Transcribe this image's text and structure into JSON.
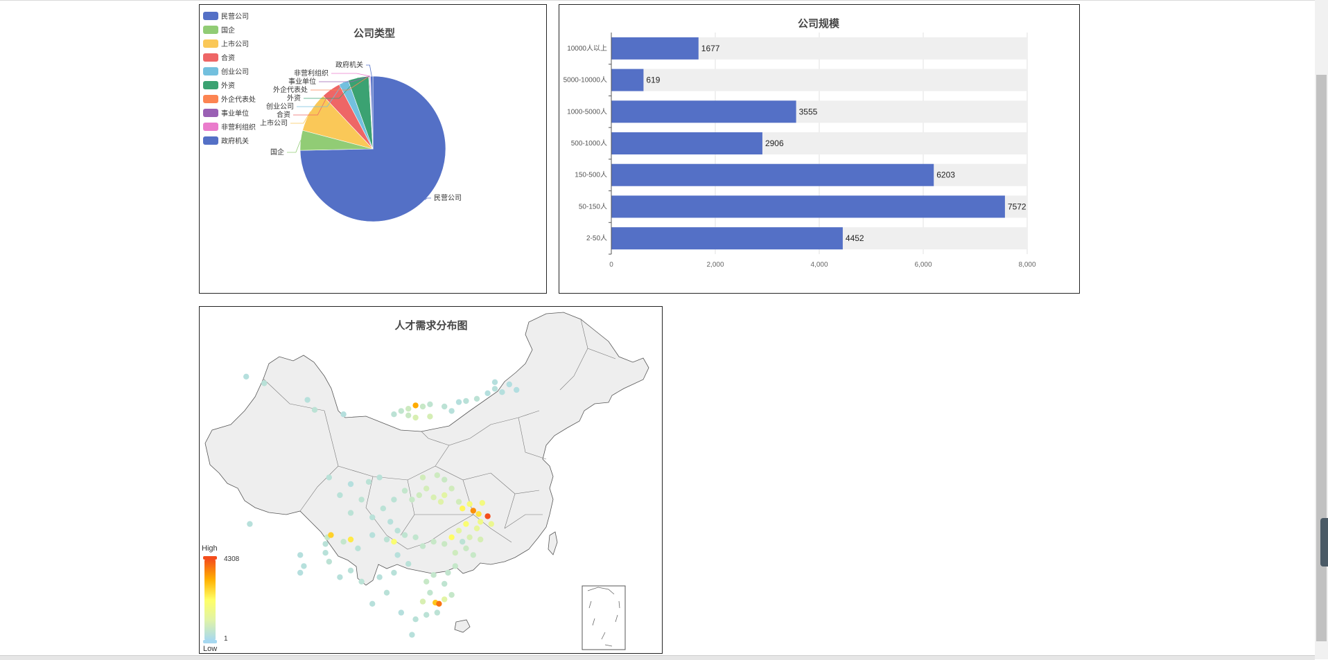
{
  "chart_data": [
    {
      "type": "pie",
      "title": "公司类型",
      "legend_position": "top-left",
      "categories": [
        "民营公司",
        "国企",
        "上市公司",
        "合资",
        "创业公司",
        "外资",
        "外企代表处",
        "事业单位",
        "非营利组织",
        "政府机关"
      ],
      "colors": [
        "#5470c6",
        "#91cc75",
        "#fac858",
        "#ee6666",
        "#73c0de",
        "#3ba272",
        "#fc8452",
        "#9a60b4",
        "#ea7ccc",
        "#5470c6"
      ],
      "values": [
        26000,
        1550,
        3100,
        1500,
        750,
        1600,
        35,
        60,
        45,
        180
      ]
    },
    {
      "type": "bar",
      "orientation": "horizontal",
      "title": "公司规模",
      "categories": [
        "2-50人",
        "50-150人",
        "150-500人",
        "500-1000人",
        "1000-5000人",
        "5000-10000人",
        "10000人以上"
      ],
      "values": [
        4452,
        7572,
        6203,
        2906,
        3555,
        619,
        1677
      ],
      "xlim": [
        0,
        8000
      ],
      "xticks": [
        0,
        2000,
        4000,
        6000,
        8000
      ],
      "xtick_labels": [
        "0",
        "2,000",
        "4,000",
        "6,000",
        "8,000"
      ],
      "bar_color": "#5470c6",
      "background_bar_color": "#efefef",
      "grid": true
    },
    {
      "type": "scatter",
      "title": "人才需求分布图",
      "visual_map": {
        "max": 4308,
        "min": 1,
        "high_label": "High",
        "low_label": "Low",
        "colors": [
          "#a6d8f0",
          "#e0f3a8",
          "#ffff66",
          "#ffb000",
          "#f44d1c"
        ]
      },
      "points": [
        [
          0.11,
          0.13,
          20
        ],
        [
          0.16,
          0.19,
          30
        ],
        [
          0.28,
          0.34,
          25
        ],
        [
          0.3,
          0.43,
          40
        ],
        [
          0.12,
          0.73,
          25
        ],
        [
          0.38,
          0.47,
          20
        ],
        [
          0.34,
          0.52,
          30
        ],
        [
          0.4,
          0.55,
          18
        ],
        [
          0.45,
          0.54,
          35
        ],
        [
          0.48,
          0.52,
          30
        ],
        [
          0.52,
          0.47,
          40
        ],
        [
          0.54,
          0.44,
          60
        ],
        [
          0.56,
          0.42,
          120
        ],
        [
          0.58,
          0.39,
          2500
        ],
        [
          0.6,
          0.4,
          90
        ],
        [
          0.62,
          0.38,
          50
        ],
        [
          0.66,
          0.4,
          40
        ],
        [
          0.68,
          0.44,
          25
        ],
        [
          0.7,
          0.36,
          20
        ],
        [
          0.72,
          0.35,
          30
        ],
        [
          0.75,
          0.33,
          40
        ],
        [
          0.78,
          0.28,
          18
        ],
        [
          0.8,
          0.24,
          25
        ],
        [
          0.82,
          0.27,
          20
        ],
        [
          0.86,
          0.25,
          15
        ],
        [
          0.8,
          0.18,
          20
        ],
        [
          0.84,
          0.2,
          15
        ],
        [
          0.56,
          0.48,
          100
        ],
        [
          0.58,
          0.5,
          200
        ],
        [
          0.6,
          0.52,
          150
        ],
        [
          0.62,
          0.49,
          180
        ],
        [
          0.64,
          0.51,
          120
        ],
        [
          0.66,
          0.53,
          100
        ],
        [
          0.68,
          0.57,
          140
        ],
        [
          0.61,
          0.57,
          160
        ],
        [
          0.59,
          0.6,
          130
        ],
        [
          0.57,
          0.62,
          90
        ],
        [
          0.55,
          0.58,
          70
        ],
        [
          0.63,
          0.61,
          200
        ],
        [
          0.65,
          0.63,
          260
        ],
        [
          0.66,
          0.6,
          300
        ],
        [
          0.7,
          0.63,
          150
        ],
        [
          0.71,
          0.66,
          1200
        ],
        [
          0.73,
          0.64,
          800
        ],
        [
          0.74,
          0.67,
          3000
        ],
        [
          0.755,
          0.685,
          1500
        ],
        [
          0.765,
          0.635,
          700
        ],
        [
          0.78,
          0.695,
          4308
        ],
        [
          0.76,
          0.72,
          600
        ],
        [
          0.79,
          0.73,
          500
        ],
        [
          0.75,
          0.75,
          400
        ],
        [
          0.72,
          0.73,
          900
        ],
        [
          0.7,
          0.76,
          350
        ],
        [
          0.73,
          0.79,
          200
        ],
        [
          0.76,
          0.8,
          180
        ],
        [
          0.72,
          0.84,
          100
        ],
        [
          0.74,
          0.87,
          90
        ],
        [
          0.69,
          0.86,
          130
        ],
        [
          0.69,
          0.92,
          80
        ],
        [
          0.67,
          0.95,
          60
        ],
        [
          0.66,
          1.0,
          50
        ],
        [
          0.63,
          0.96,
          70
        ],
        [
          0.61,
          0.99,
          90
        ],
        [
          0.62,
          1.04,
          60
        ],
        [
          0.6,
          1.08,
          200
        ],
        [
          0.635,
          1.085,
          2000
        ],
        [
          0.645,
          1.09,
          3500
        ],
        [
          0.66,
          1.07,
          300
        ],
        [
          0.68,
          1.05,
          80
        ],
        [
          0.64,
          1.13,
          40
        ],
        [
          0.61,
          1.14,
          35
        ],
        [
          0.58,
          1.16,
          30
        ],
        [
          0.57,
          1.23,
          25
        ],
        [
          0.54,
          1.13,
          20
        ],
        [
          0.5,
          1.04,
          30
        ],
        [
          0.46,
          1.09,
          25
        ],
        [
          0.43,
          0.99,
          35
        ],
        [
          0.4,
          0.94,
          30
        ],
        [
          0.34,
          0.9,
          40
        ],
        [
          0.33,
          0.86,
          28
        ],
        [
          0.33,
          0.82,
          30
        ],
        [
          0.335,
          0.79,
          90
        ],
        [
          0.345,
          0.78,
          1800
        ],
        [
          0.38,
          0.81,
          70
        ],
        [
          0.4,
          0.8,
          1400
        ],
        [
          0.42,
          0.84,
          30
        ],
        [
          0.46,
          0.78,
          25
        ],
        [
          0.5,
          0.8,
          40
        ],
        [
          0.52,
          0.81,
          900
        ],
        [
          0.55,
          0.78,
          50
        ],
        [
          0.58,
          0.79,
          60
        ],
        [
          0.6,
          0.83,
          70
        ],
        [
          0.63,
          0.81,
          90
        ],
        [
          0.66,
          0.82,
          100
        ],
        [
          0.68,
          0.79,
          1100
        ],
        [
          0.71,
          0.81,
          40
        ],
        [
          0.46,
          0.7,
          30
        ],
        [
          0.49,
          0.66,
          35
        ],
        [
          0.52,
          0.62,
          40
        ],
        [
          0.43,
          0.62,
          45
        ],
        [
          0.4,
          0.68,
          35
        ],
        [
          0.37,
          0.6,
          30
        ],
        [
          0.51,
          0.72,
          25
        ],
        [
          0.53,
          0.76,
          30
        ],
        [
          0.26,
          0.87,
          20
        ],
        [
          0.27,
          0.92,
          22
        ],
        [
          0.26,
          0.95,
          18
        ],
        [
          0.37,
          0.97,
          25
        ],
        [
          0.53,
          0.87,
          25
        ],
        [
          0.56,
          0.91,
          30
        ],
        [
          0.52,
          0.95,
          28
        ],
        [
          0.48,
          0.97,
          25
        ]
      ]
    }
  ]
}
